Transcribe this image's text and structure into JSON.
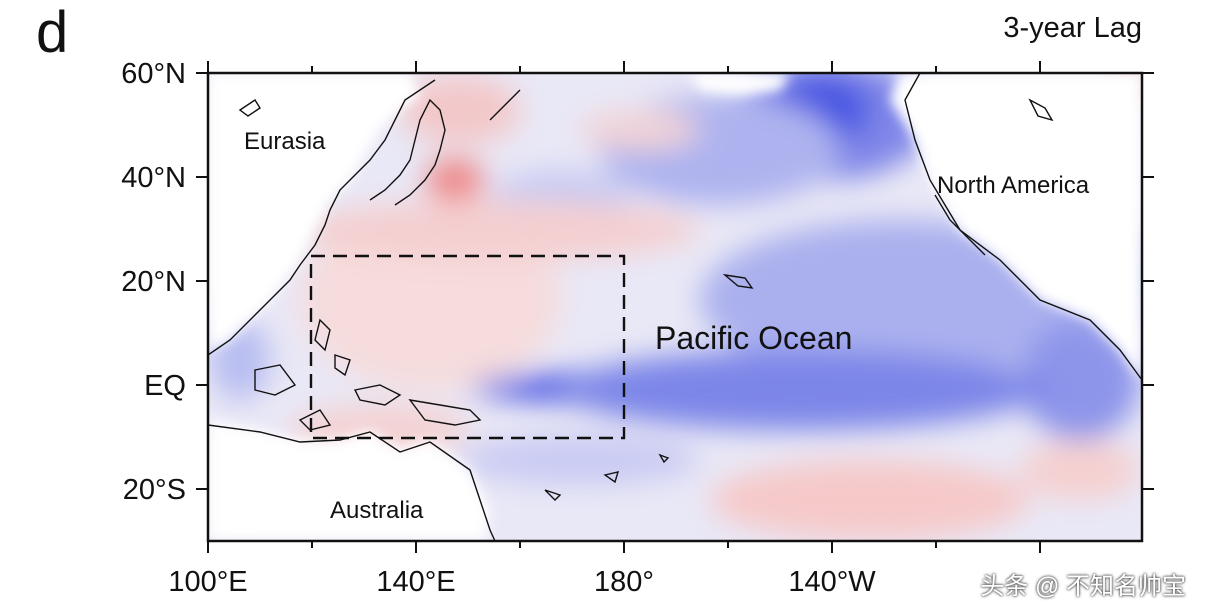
{
  "panel_label": "d",
  "title": "3-year Lag",
  "y_axis": {
    "tick_labels": [
      "60°N",
      "40°N",
      "20°N",
      "EQ",
      "20°S"
    ],
    "lat_values": [
      60,
      40,
      20,
      0,
      -20
    ]
  },
  "x_axis": {
    "tick_labels": [
      "100°E",
      "140°E",
      "180°",
      "140°W",
      ""
    ],
    "lon_values": [
      100,
      140,
      180,
      220,
      260
    ]
  },
  "map_extent": {
    "lon_min": 100,
    "lon_max": 280,
    "lat_min": -30,
    "lat_max": 60
  },
  "region_labels": {
    "eurasia": "Eurasia",
    "north_america": "North America",
    "australia": "Australia",
    "pacific": "Pacific Ocean"
  },
  "highlight_box": {
    "lon_min": 120,
    "lon_max": 180,
    "lat_min": -10,
    "lat_max": 25,
    "style": "dashed"
  },
  "watermark": "头条 @ 不知名帅宝",
  "colors": {
    "warm": "#f08a8a",
    "cool": "#3b4fe0",
    "neutral": "#f4f2f8",
    "land": "#ffffff",
    "coast": "#111111"
  }
}
